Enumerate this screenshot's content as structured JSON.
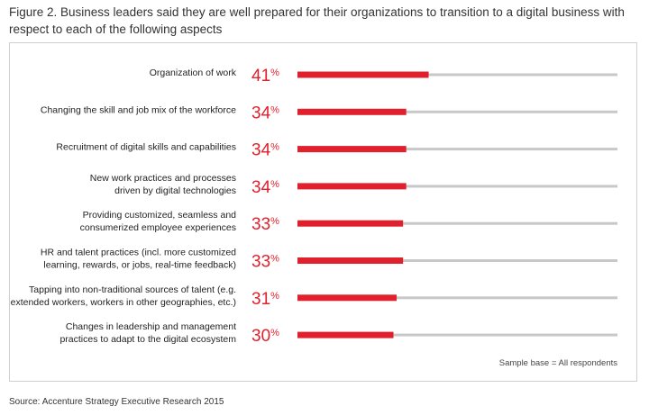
{
  "figure": {
    "title": "Figure 2. Business leaders said they are well prepared for their organizations to transition to a digital business with respect to each of the following aspects",
    "sample_base": "Sample base = All respondents",
    "source": "Source: Accenture Strategy Executive Research 2015"
  },
  "chart_data": {
    "type": "bar",
    "orientation": "horizontal",
    "categories": [
      [
        "Organization of work"
      ],
      [
        "Changing the skill and job mix of the workforce"
      ],
      [
        "Recruitment of digital skills and capabilities"
      ],
      [
        "New work practices and processes",
        "driven by digital technologies"
      ],
      [
        "Providing customized, seamless and",
        "consumerized employee experiences"
      ],
      [
        "HR and talent practices (incl. more customized",
        "learning, rewards, or jobs, real-time feedback)"
      ],
      [
        "Tapping into non-traditional sources of talent (e.g.",
        "extended workers, workers in other geographies, etc.)"
      ],
      [
        "Changes in leadership and management",
        "practices to adapt to the digital ecosystem"
      ]
    ],
    "values": [
      41,
      34,
      34,
      34,
      33,
      33,
      31,
      30
    ],
    "value_suffix": "%",
    "xlim": [
      0,
      100
    ],
    "colors": {
      "bar": "#e0202c",
      "track": "#c8c8c8",
      "value_text": "#e0202c"
    }
  }
}
